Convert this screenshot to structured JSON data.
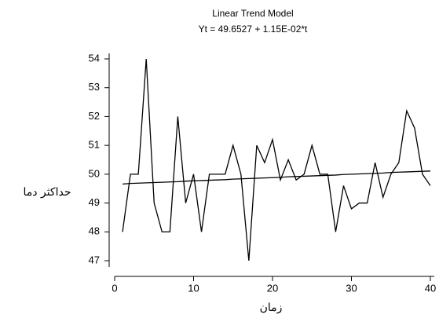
{
  "chart_data": {
    "type": "line",
    "title": "Linear Trend Model",
    "subtitle": "Yt = 49.6527 + 1.15E-02*t",
    "x_label": "زمان",
    "y_label": "حداکثر دما",
    "x": [
      1,
      2,
      3,
      4,
      5,
      6,
      7,
      8,
      9,
      10,
      11,
      12,
      13,
      14,
      15,
      16,
      17,
      18,
      19,
      20,
      21,
      22,
      23,
      24,
      25,
      26,
      27,
      28,
      29,
      30,
      31,
      32,
      33,
      34,
      35,
      36,
      37,
      38,
      39,
      40
    ],
    "series": [
      {
        "color": "#000000",
        "values": [
          48,
          50,
          50,
          54,
          49,
          48,
          48,
          52,
          49,
          50,
          48,
          50,
          50,
          50,
          51,
          50,
          47,
          51,
          50.4,
          51.2,
          49.8,
          50.5,
          49.8,
          50,
          51,
          50,
          50,
          48,
          49.6,
          48.8,
          49,
          49,
          50.4,
          49.2,
          50,
          50.4,
          52.2,
          51.6,
          50,
          49.6
        ]
      },
      {
        "color": "#000000",
        "values": [
          49.66,
          49.68,
          49.69,
          49.7,
          49.71,
          49.72,
          49.73,
          49.74,
          49.76,
          49.77,
          49.78,
          49.79,
          49.8,
          49.81,
          49.83,
          49.84,
          49.85,
          49.86,
          49.87,
          49.88,
          49.89,
          49.91,
          49.92,
          49.93,
          49.94,
          49.95,
          49.96,
          49.97,
          49.99,
          50,
          50.01,
          50.02,
          50.03,
          50.04,
          50.06,
          50.07,
          50.08,
          50.09,
          50.1,
          50.11
        ]
      }
    ],
    "xlim": [
      0,
      40
    ],
    "ylim": [
      47,
      54
    ],
    "xticks": [
      0,
      10,
      20,
      30,
      40
    ],
    "yticks": [
      47,
      48,
      49,
      50,
      51,
      52,
      53,
      54
    ]
  }
}
